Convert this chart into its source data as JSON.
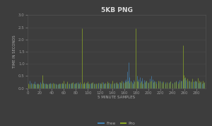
{
  "title": "5KB PNG",
  "xlabel": "5 MINUTE SAMPLES",
  "ylabel": "TIME IN SECONDS",
  "background_color": "#3d3d3d",
  "plot_bg_color": "#3d3d3d",
  "grid_color": "#555555",
  "title_color": "#dddddd",
  "label_color": "#aaaaaa",
  "tick_color": "#999999",
  "free_color": "#4488bb",
  "pro_color": "#99bb22",
  "xlim": [
    0,
    295
  ],
  "ylim": [
    0,
    3.0
  ],
  "yticks": [
    0,
    0.5,
    1.0,
    1.5,
    2.0,
    2.5,
    3.0
  ],
  "xticks": [
    0,
    20,
    40,
    60,
    80,
    100,
    120,
    140,
    160,
    180,
    200,
    220,
    240,
    260,
    280
  ],
  "legend_labels": [
    "Free",
    "Pro"
  ],
  "n_points": 295,
  "free_spikes": [
    [
      3,
      0.32
    ],
    [
      6,
      0.22
    ],
    [
      9,
      0.18
    ],
    [
      12,
      0.28
    ],
    [
      15,
      0.2
    ],
    [
      18,
      0.18
    ],
    [
      21,
      0.25
    ],
    [
      24,
      0.3
    ],
    [
      26,
      0.22
    ],
    [
      29,
      0.18
    ],
    [
      32,
      0.2
    ],
    [
      35,
      0.18
    ],
    [
      38,
      0.22
    ],
    [
      41,
      0.18
    ],
    [
      44,
      0.2
    ],
    [
      47,
      0.18
    ],
    [
      50,
      0.15
    ],
    [
      53,
      0.18
    ],
    [
      56,
      0.2
    ],
    [
      59,
      0.18
    ],
    [
      62,
      0.2
    ],
    [
      65,
      0.22
    ],
    [
      68,
      0.18
    ],
    [
      71,
      0.2
    ],
    [
      74,
      0.22
    ],
    [
      77,
      0.18
    ],
    [
      80,
      0.22
    ],
    [
      83,
      0.25
    ],
    [
      86,
      0.2
    ],
    [
      89,
      0.18
    ],
    [
      92,
      0.2
    ],
    [
      95,
      0.18
    ],
    [
      98,
      0.22
    ],
    [
      101,
      0.18
    ],
    [
      104,
      0.2
    ],
    [
      107,
      0.22
    ],
    [
      110,
      0.18
    ],
    [
      113,
      0.2
    ],
    [
      116,
      0.18
    ],
    [
      119,
      0.22
    ],
    [
      122,
      0.2
    ],
    [
      125,
      0.25
    ],
    [
      128,
      0.18
    ],
    [
      131,
      0.2
    ],
    [
      134,
      0.22
    ],
    [
      137,
      0.18
    ],
    [
      140,
      0.2
    ],
    [
      143,
      0.18
    ],
    [
      146,
      0.22
    ],
    [
      149,
      0.2
    ],
    [
      152,
      0.25
    ],
    [
      155,
      0.22
    ],
    [
      158,
      0.28
    ],
    [
      161,
      0.3
    ],
    [
      163,
      0.38
    ],
    [
      165,
      0.7
    ],
    [
      167,
      1.05
    ],
    [
      169,
      0.45
    ],
    [
      171,
      0.3
    ],
    [
      173,
      0.25
    ],
    [
      176,
      0.35
    ],
    [
      179,
      0.28
    ],
    [
      182,
      0.5
    ],
    [
      184,
      0.38
    ],
    [
      186,
      0.45
    ],
    [
      188,
      0.32
    ],
    [
      190,
      0.42
    ],
    [
      193,
      0.35
    ],
    [
      196,
      0.3
    ],
    [
      199,
      0.25
    ],
    [
      202,
      0.4
    ],
    [
      205,
      0.5
    ],
    [
      207,
      0.38
    ],
    [
      210,
      0.32
    ],
    [
      213,
      0.28
    ],
    [
      216,
      0.22
    ],
    [
      219,
      0.32
    ],
    [
      222,
      0.28
    ],
    [
      225,
      0.22
    ],
    [
      228,
      0.25
    ],
    [
      231,
      0.2
    ],
    [
      234,
      0.25
    ],
    [
      237,
      0.28
    ],
    [
      240,
      0.22
    ],
    [
      243,
      0.25
    ],
    [
      246,
      0.3
    ],
    [
      249,
      0.28
    ],
    [
      252,
      0.35
    ],
    [
      255,
      0.3
    ],
    [
      257,
      0.38
    ],
    [
      260,
      0.42
    ],
    [
      262,
      0.35
    ],
    [
      265,
      0.28
    ],
    [
      268,
      0.32
    ],
    [
      271,
      0.25
    ],
    [
      274,
      0.28
    ],
    [
      277,
      0.32
    ],
    [
      280,
      0.28
    ],
    [
      283,
      0.22
    ],
    [
      286,
      0.25
    ],
    [
      289,
      0.2
    ],
    [
      292,
      0.22
    ]
  ],
  "pro_spikes": [
    [
      1,
      0.18
    ],
    [
      4,
      0.15
    ],
    [
      7,
      0.18
    ],
    [
      10,
      0.2
    ],
    [
      13,
      0.15
    ],
    [
      16,
      0.18
    ],
    [
      19,
      0.15
    ],
    [
      22,
      0.18
    ],
    [
      25,
      0.55
    ],
    [
      27,
      0.18
    ],
    [
      30,
      0.2
    ],
    [
      33,
      0.15
    ],
    [
      36,
      0.18
    ],
    [
      39,
      0.2
    ],
    [
      42,
      0.22
    ],
    [
      45,
      0.18
    ],
    [
      48,
      0.15
    ],
    [
      51,
      0.2
    ],
    [
      54,
      0.18
    ],
    [
      57,
      0.22
    ],
    [
      60,
      0.32
    ],
    [
      63,
      0.2
    ],
    [
      66,
      0.28
    ],
    [
      69,
      0.18
    ],
    [
      72,
      0.22
    ],
    [
      75,
      0.25
    ],
    [
      78,
      0.2
    ],
    [
      81,
      0.22
    ],
    [
      84,
      0.2
    ],
    [
      87,
      0.25
    ],
    [
      90,
      2.45
    ],
    [
      92,
      0.18
    ],
    [
      94,
      0.25
    ],
    [
      97,
      0.22
    ],
    [
      99,
      0.28
    ],
    [
      102,
      0.2
    ],
    [
      105,
      0.22
    ],
    [
      108,
      0.25
    ],
    [
      111,
      0.18
    ],
    [
      114,
      0.2
    ],
    [
      117,
      0.22
    ],
    [
      120,
      0.2
    ],
    [
      123,
      0.25
    ],
    [
      126,
      0.2
    ],
    [
      129,
      0.22
    ],
    [
      132,
      0.28
    ],
    [
      135,
      0.22
    ],
    [
      138,
      0.18
    ],
    [
      141,
      0.3
    ],
    [
      144,
      0.22
    ],
    [
      147,
      0.25
    ],
    [
      150,
      0.2
    ],
    [
      153,
      0.25
    ],
    [
      156,
      0.32
    ],
    [
      159,
      0.22
    ],
    [
      162,
      0.25
    ],
    [
      164,
      0.28
    ],
    [
      166,
      0.3
    ],
    [
      168,
      0.22
    ],
    [
      171,
      0.28
    ],
    [
      174,
      0.2
    ],
    [
      177,
      0.28
    ],
    [
      179,
      2.45
    ],
    [
      181,
      0.32
    ],
    [
      183,
      0.28
    ],
    [
      186,
      0.22
    ],
    [
      189,
      0.28
    ],
    [
      191,
      0.2
    ],
    [
      194,
      0.25
    ],
    [
      197,
      0.3
    ],
    [
      200,
      0.22
    ],
    [
      203,
      0.28
    ],
    [
      205,
      0.32
    ],
    [
      208,
      0.25
    ],
    [
      211,
      0.28
    ],
    [
      213,
      0.2
    ],
    [
      216,
      0.32
    ],
    [
      219,
      0.28
    ],
    [
      222,
      0.22
    ],
    [
      225,
      0.28
    ],
    [
      228,
      0.2
    ],
    [
      231,
      0.25
    ],
    [
      234,
      0.22
    ],
    [
      237,
      0.28
    ],
    [
      240,
      0.2
    ],
    [
      243,
      0.25
    ],
    [
      246,
      0.28
    ],
    [
      249,
      0.2
    ],
    [
      252,
      0.25
    ],
    [
      254,
      0.3
    ],
    [
      257,
      1.75
    ],
    [
      259,
      0.55
    ],
    [
      261,
      0.45
    ],
    [
      264,
      0.4
    ],
    [
      267,
      0.32
    ],
    [
      270,
      0.28
    ],
    [
      273,
      0.4
    ],
    [
      276,
      0.28
    ],
    [
      279,
      0.32
    ],
    [
      282,
      0.42
    ],
    [
      284,
      0.32
    ],
    [
      287,
      0.28
    ],
    [
      290,
      0.32
    ],
    [
      293,
      0.25
    ]
  ]
}
